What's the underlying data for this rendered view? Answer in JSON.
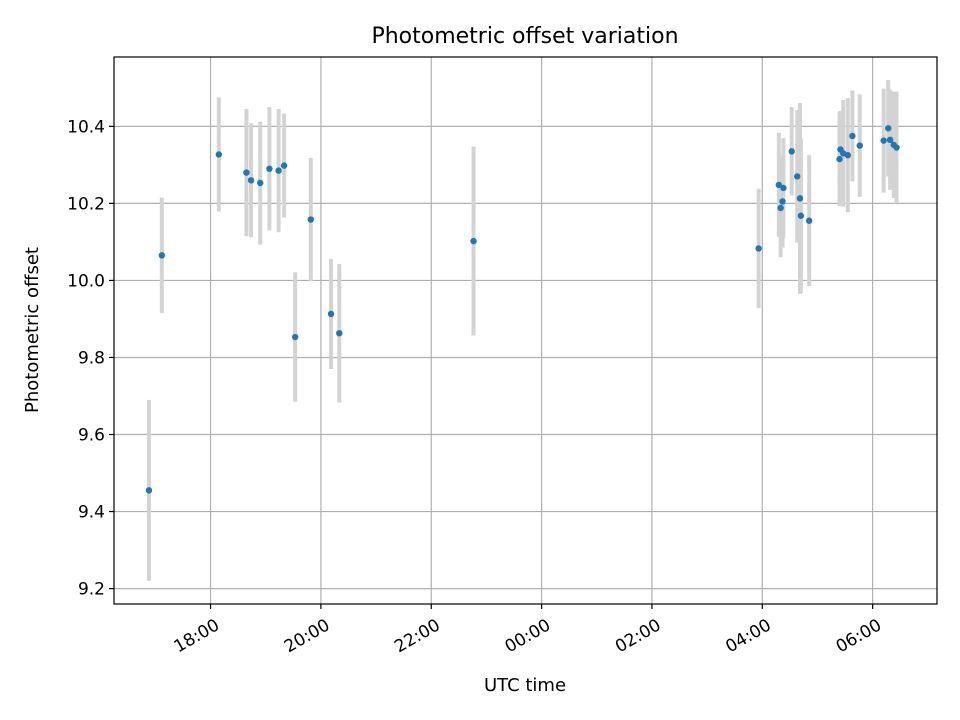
{
  "chart_data": {
    "type": "scatter",
    "title": "Photometric offset variation",
    "xlabel": "UTC time",
    "ylabel": "Photometric offset",
    "x_axis_type": "time",
    "xlim": [
      "16:15",
      "07:10"
    ],
    "ylim": [
      9.16,
      10.58
    ],
    "xticks": [
      "18:00",
      "20:00",
      "22:00",
      "00:00",
      "02:00",
      "04:00",
      "06:00"
    ],
    "yticks": [
      9.2,
      9.4,
      9.6,
      9.8,
      10.0,
      10.2,
      10.4
    ],
    "grid": true,
    "marker_color": "#1f77b4",
    "errorbar_color": "#d3d3d3",
    "points": [
      {
        "t": "16:53",
        "y": 9.455,
        "err": 0.235
      },
      {
        "t": "17:07",
        "y": 10.065,
        "err": 0.15
      },
      {
        "t": "18:09",
        "y": 10.327,
        "err": 0.148
      },
      {
        "t": "18:39",
        "y": 10.28,
        "err": 0.165
      },
      {
        "t": "18:44",
        "y": 10.26,
        "err": 0.148
      },
      {
        "t": "18:54",
        "y": 10.253,
        "err": 0.16
      },
      {
        "t": "19:04",
        "y": 10.29,
        "err": 0.16
      },
      {
        "t": "19:14",
        "y": 10.285,
        "err": 0.16
      },
      {
        "t": "19:20",
        "y": 10.298,
        "err": 0.135
      },
      {
        "t": "19:32",
        "y": 9.853,
        "err": 0.168
      },
      {
        "t": "19:49",
        "y": 10.158,
        "err": 0.16
      },
      {
        "t": "20:11",
        "y": 9.913,
        "err": 0.143
      },
      {
        "t": "20:20",
        "y": 9.863,
        "err": 0.18
      },
      {
        "t": "22:46",
        "y": 10.102,
        "err": 0.245
      },
      {
        "t": "03:56",
        "y": 10.083,
        "err": 0.155
      },
      {
        "t": "04:18",
        "y": 10.248,
        "err": 0.135
      },
      {
        "t": "04:20",
        "y": 10.188,
        "err": 0.128
      },
      {
        "t": "04:22",
        "y": 10.205,
        "err": 0.12
      },
      {
        "t": "04:23",
        "y": 10.24,
        "err": 0.13
      },
      {
        "t": "04:32",
        "y": 10.335,
        "err": 0.115
      },
      {
        "t": "04:38",
        "y": 10.27,
        "err": 0.172
      },
      {
        "t": "04:41",
        "y": 10.213,
        "err": 0.248
      },
      {
        "t": "04:42",
        "y": 10.168,
        "err": 0.2
      },
      {
        "t": "04:51",
        "y": 10.155,
        "err": 0.17
      },
      {
        "t": "05:24",
        "y": 10.315,
        "err": 0.122
      },
      {
        "t": "05:25",
        "y": 10.34,
        "err": 0.1
      },
      {
        "t": "05:28",
        "y": 10.33,
        "err": 0.138
      },
      {
        "t": "05:33",
        "y": 10.325,
        "err": 0.148
      },
      {
        "t": "05:38",
        "y": 10.375,
        "err": 0.118
      },
      {
        "t": "05:46",
        "y": 10.35,
        "err": 0.133
      },
      {
        "t": "06:12",
        "y": 10.363,
        "err": 0.135
      },
      {
        "t": "06:17",
        "y": 10.395,
        "err": 0.125
      },
      {
        "t": "06:19",
        "y": 10.365,
        "err": 0.13
      },
      {
        "t": "06:23",
        "y": 10.352,
        "err": 0.138
      },
      {
        "t": "06:26",
        "y": 10.345,
        "err": 0.145
      }
    ]
  }
}
